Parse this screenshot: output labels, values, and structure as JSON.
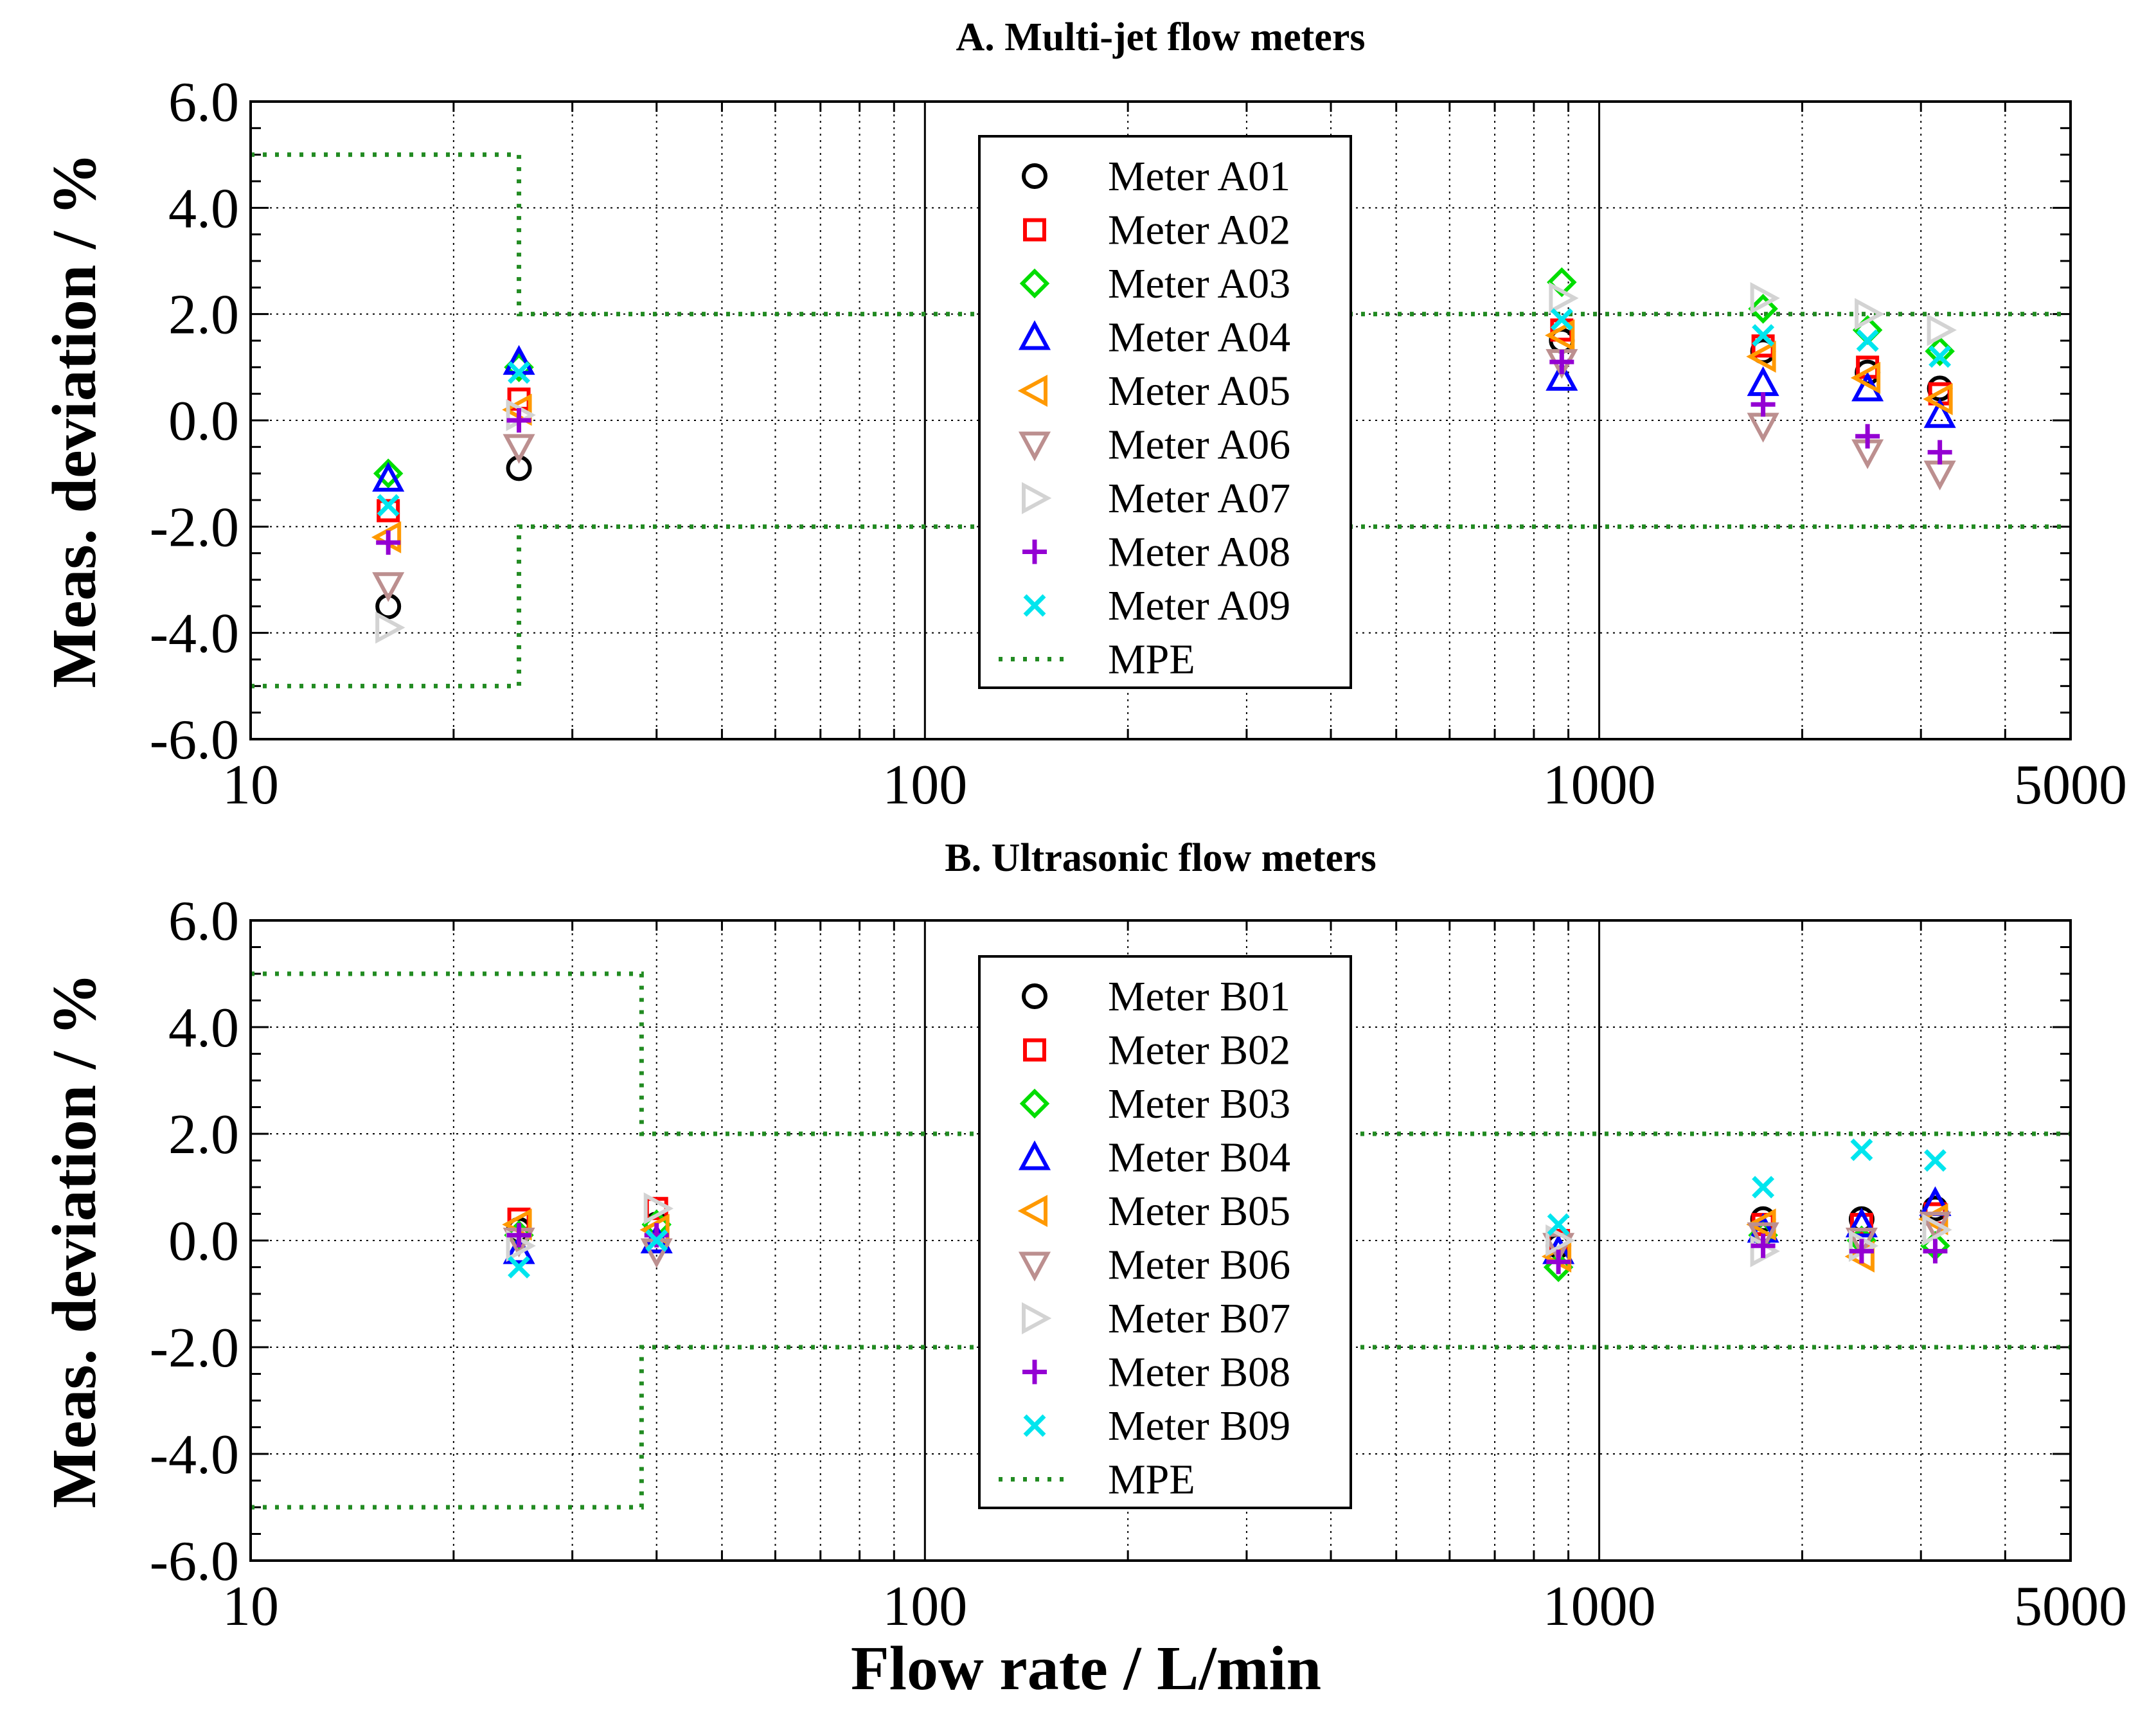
{
  "chart_data": [
    {
      "type": "scatter",
      "title": "A. Multi-jet flow meters",
      "xlabel": "",
      "ylabel": "Meas. deviation / %",
      "xscale": "log",
      "xlim": [
        10,
        5000
      ],
      "ylim": [
        -6.0,
        6.0
      ],
      "xticks": [
        "10",
        "100",
        "1000",
        "5000"
      ],
      "yticks": [
        "6.0",
        "4.0",
        "2.0",
        "0.0",
        "-2.0",
        "-4.0",
        "-6.0"
      ],
      "grid": true,
      "legend_position": "top-center",
      "series": [
        {
          "name": "Meter A01",
          "marker": "circle",
          "color": "#000000",
          "points": [
            [
              16,
              -3.5
            ],
            [
              25,
              -0.9
            ],
            [
              880,
              1.5
            ],
            [
              1750,
              1.3
            ],
            [
              2500,
              0.9
            ],
            [
              3200,
              0.6
            ]
          ]
        },
        {
          "name": "Meter A02",
          "marker": "square",
          "color": "#ff0000",
          "points": [
            [
              16,
              -1.7
            ],
            [
              25,
              0.4
            ],
            [
              880,
              1.7
            ],
            [
              1750,
              1.4
            ],
            [
              2500,
              1.0
            ],
            [
              3200,
              0.5
            ]
          ]
        },
        {
          "name": "Meter A03",
          "marker": "diamond",
          "color": "#00dd00",
          "points": [
            [
              16,
              -1.0
            ],
            [
              25,
              1.0
            ],
            [
              880,
              2.6
            ],
            [
              1750,
              2.1
            ],
            [
              2500,
              1.7
            ],
            [
              3200,
              1.3
            ]
          ]
        },
        {
          "name": "Meter A04",
          "marker": "triangle-up",
          "color": "#0000ff",
          "points": [
            [
              16,
              -1.1
            ],
            [
              25,
              1.1
            ],
            [
              880,
              0.8
            ],
            [
              1750,
              0.7
            ],
            [
              2500,
              0.6
            ],
            [
              3200,
              0.1
            ]
          ]
        },
        {
          "name": "Meter A05",
          "marker": "triangle-left",
          "color": "#ff9900",
          "points": [
            [
              16,
              -2.2
            ],
            [
              25,
              0.2
            ],
            [
              880,
              1.6
            ],
            [
              1750,
              1.2
            ],
            [
              2500,
              0.8
            ],
            [
              3200,
              0.4
            ]
          ]
        },
        {
          "name": "Meter A06",
          "marker": "triangle-down",
          "color": "#bc8f8f",
          "points": [
            [
              16,
              -3.1
            ],
            [
              25,
              -0.5
            ],
            [
              880,
              1.1
            ],
            [
              1750,
              -0.1
            ],
            [
              2500,
              -0.6
            ],
            [
              3200,
              -1.0
            ]
          ]
        },
        {
          "name": "Meter A07",
          "marker": "triangle-right",
          "color": "#d3d3d3",
          "points": [
            [
              16,
              -3.9
            ],
            [
              25,
              0.1
            ],
            [
              880,
              2.3
            ],
            [
              1750,
              2.3
            ],
            [
              2500,
              2.0
            ],
            [
              3200,
              1.7
            ]
          ]
        },
        {
          "name": "Meter A08",
          "marker": "plus",
          "color": "#9400d3",
          "points": [
            [
              16,
              -2.3
            ],
            [
              25,
              0.0
            ],
            [
              880,
              1.1
            ],
            [
              1750,
              0.3
            ],
            [
              2500,
              -0.3
            ],
            [
              3200,
              -0.6
            ]
          ]
        },
        {
          "name": "Meter A09",
          "marker": "cross",
          "color": "#00e5ee",
          "points": [
            [
              16,
              -1.6
            ],
            [
              25,
              0.9
            ],
            [
              880,
              1.9
            ],
            [
              1750,
              1.6
            ],
            [
              2500,
              1.5
            ],
            [
              3200,
              1.2
            ]
          ]
        },
        {
          "name": "MPE",
          "marker": "dotted-line",
          "color": "#228b22",
          "upper": [
            [
              10,
              5.0
            ],
            [
              25,
              5.0
            ],
            [
              25,
              2.0
            ],
            [
              5000,
              2.0
            ]
          ],
          "lower": [
            [
              10,
              -5.0
            ],
            [
              25,
              -5.0
            ],
            [
              25,
              -2.0
            ],
            [
              5000,
              -2.0
            ]
          ]
        }
      ]
    },
    {
      "type": "scatter",
      "title": "B. Ultrasonic flow meters",
      "xlabel": "Flow rate / L/min",
      "ylabel": "Meas. deviation / %",
      "xscale": "log",
      "xlim": [
        10,
        5000
      ],
      "ylim": [
        -6.0,
        6.0
      ],
      "xticks": [
        "10",
        "100",
        "1000",
        "5000"
      ],
      "yticks": [
        "6.0",
        "4.0",
        "2.0",
        "0.0",
        "-2.0",
        "-4.0",
        "-6.0"
      ],
      "grid": true,
      "legend_position": "top-center",
      "series": [
        {
          "name": "Meter B01",
          "marker": "circle",
          "color": "#000000",
          "points": [
            [
              25,
              0.2
            ],
            [
              40,
              0.3
            ],
            [
              870,
              -0.1
            ],
            [
              1750,
              0.4
            ],
            [
              2450,
              0.4
            ],
            [
              3150,
              0.6
            ]
          ]
        },
        {
          "name": "Meter B02",
          "marker": "square",
          "color": "#ff0000",
          "points": [
            [
              25,
              0.4
            ],
            [
              40,
              0.6
            ],
            [
              870,
              0.0
            ],
            [
              1750,
              0.3
            ],
            [
              2450,
              0.3
            ],
            [
              3150,
              0.5
            ]
          ]
        },
        {
          "name": "Meter B03",
          "marker": "diamond",
          "color": "#00dd00",
          "points": [
            [
              25,
              0.1
            ],
            [
              40,
              0.3
            ],
            [
              870,
              -0.5
            ],
            [
              1750,
              0.1
            ],
            [
              2450,
              0.0
            ],
            [
              3150,
              -0.1
            ]
          ]
        },
        {
          "name": "Meter B04",
          "marker": "triangle-up",
          "color": "#0000ff",
          "points": [
            [
              25,
              -0.2
            ],
            [
              40,
              0.0
            ],
            [
              870,
              -0.2
            ],
            [
              1750,
              0.2
            ],
            [
              2450,
              0.3
            ],
            [
              3150,
              0.7
            ]
          ]
        },
        {
          "name": "Meter B05",
          "marker": "triangle-left",
          "color": "#ff9900",
          "points": [
            [
              25,
              0.3
            ],
            [
              40,
              0.2
            ],
            [
              870,
              -0.3
            ],
            [
              1750,
              0.3
            ],
            [
              2450,
              -0.3
            ],
            [
              3150,
              0.4
            ]
          ]
        },
        {
          "name": "Meter B06",
          "marker": "triangle-down",
          "color": "#bc8f8f",
          "points": [
            [
              25,
              0.0
            ],
            [
              40,
              -0.2
            ],
            [
              870,
              -0.1
            ],
            [
              1750,
              0.1
            ],
            [
              2450,
              0.0
            ],
            [
              3150,
              0.3
            ]
          ]
        },
        {
          "name": "Meter B07",
          "marker": "triangle-right",
          "color": "#d3d3d3",
          "points": [
            [
              25,
              -0.1
            ],
            [
              40,
              0.6
            ],
            [
              870,
              0.0
            ],
            [
              1750,
              -0.2
            ],
            [
              2450,
              -0.1
            ],
            [
              3150,
              0.2
            ]
          ]
        },
        {
          "name": "Meter B08",
          "marker": "plus",
          "color": "#9400d3",
          "points": [
            [
              25,
              0.1
            ],
            [
              40,
              0.1
            ],
            [
              870,
              -0.4
            ],
            [
              1750,
              -0.1
            ],
            [
              2450,
              -0.2
            ],
            [
              3150,
              -0.2
            ]
          ]
        },
        {
          "name": "Meter B09",
          "marker": "cross",
          "color": "#00e5ee",
          "points": [
            [
              25,
              -0.5
            ],
            [
              40,
              0.0
            ],
            [
              870,
              0.3
            ],
            [
              1750,
              1.0
            ],
            [
              2450,
              1.7
            ],
            [
              3150,
              1.5
            ]
          ]
        },
        {
          "name": "MPE",
          "marker": "dotted-line",
          "color": "#228b22",
          "upper": [
            [
              10,
              5.0
            ],
            [
              38,
              5.0
            ],
            [
              38,
              2.0
            ],
            [
              5000,
              2.0
            ]
          ],
          "lower": [
            [
              10,
              -5.0
            ],
            [
              38,
              -5.0
            ],
            [
              38,
              -2.0
            ],
            [
              5000,
              -2.0
            ]
          ]
        }
      ]
    }
  ]
}
